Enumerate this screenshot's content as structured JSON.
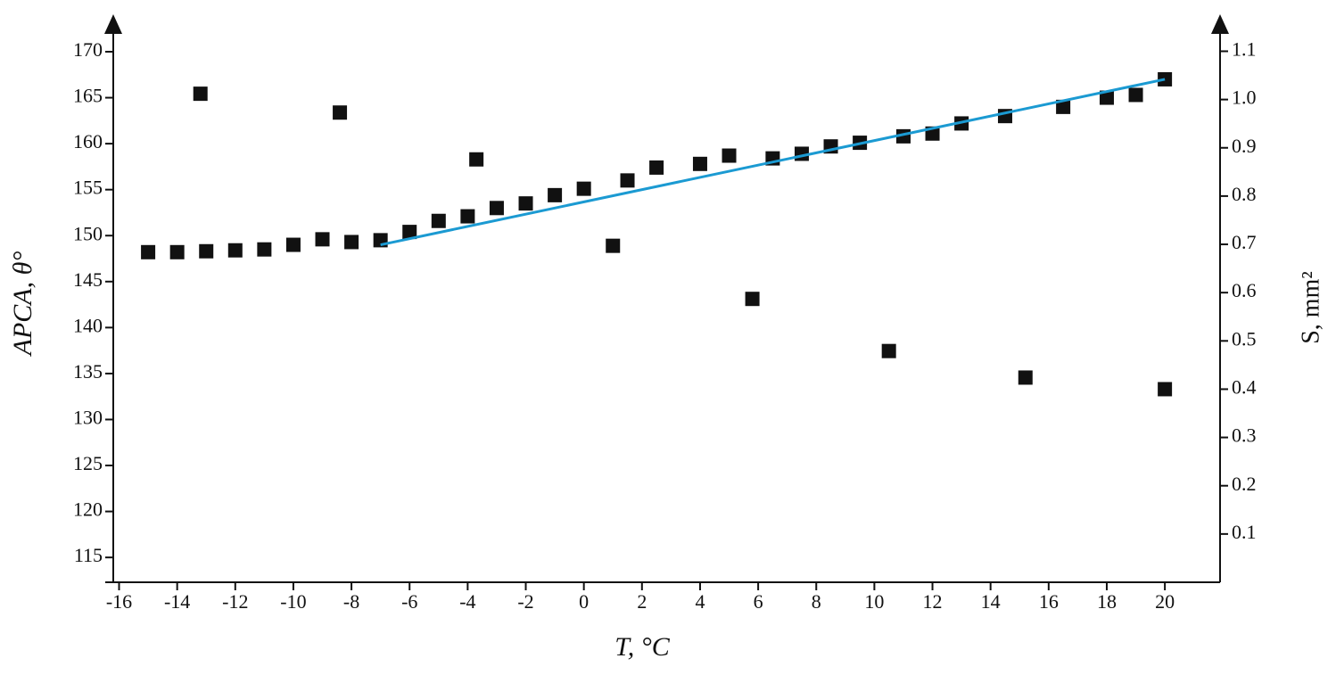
{
  "chart_data": {
    "type": "scatter",
    "x_label": "T, °C",
    "y_label": "APCA, θ°",
    "y2_label": "S, mm²",
    "xlim": [
      -16.2,
      21.9
    ],
    "xticks": [
      -16,
      -14,
      -12,
      -10,
      -8,
      -6,
      -4,
      -2,
      0,
      2,
      4,
      6,
      8,
      10,
      12,
      14,
      16,
      18,
      20
    ],
    "ylim": [
      112.3,
      173.2
    ],
    "yticks": [
      115,
      120,
      125,
      130,
      135,
      140,
      145,
      150,
      155,
      160,
      165,
      170
    ],
    "y2lim": [
      0,
      1.16
    ],
    "y2ticks": [
      0.1,
      0.2,
      0.3,
      0.4,
      0.5,
      0.6,
      0.7,
      0.8,
      0.9,
      {
        "value": 1,
        "label": "1.0"
      },
      1.1
    ],
    "series": [
      {
        "type": "scatter",
        "color": "#111111",
        "x": [
          -15,
          -14,
          -13,
          -12,
          -11,
          -10,
          -9,
          -8,
          -7,
          -6,
          -5,
          -4,
          -3,
          -2,
          -1,
          0,
          1.5,
          2.5,
          4,
          5,
          6.5,
          7.5,
          8.5,
          9.5,
          11,
          12,
          13,
          14.5,
          16.5,
          18,
          19,
          20
        ],
        "values": [
          148.2,
          148.2,
          148.3,
          148.4,
          148.5,
          149.0,
          149.6,
          149.3,
          149.5,
          150.4,
          151.6,
          152.1,
          153.0,
          153.5,
          154.4,
          155.1,
          156.0,
          157.4,
          157.8,
          158.7,
          158.4,
          158.9,
          159.7,
          160.1,
          160.8,
          161.1,
          162.2,
          163.0,
          164.0,
          165.0,
          165.3,
          167.0
        ]
      },
      {
        "type": "scatter",
        "color": "#111111",
        "axis": "y2",
        "x": [
          -13.2,
          -8.4,
          -3.7,
          1,
          5.8,
          10.5,
          15.2,
          20
        ],
        "values": [
          1.012,
          0.973,
          0.876,
          0.697,
          0.587,
          0.479,
          0.424,
          0.4
        ]
      },
      {
        "type": "line",
        "color": "#1b9ad2",
        "x": [
          -7,
          20
        ],
        "values": [
          149.0,
          167.0
        ]
      }
    ]
  }
}
